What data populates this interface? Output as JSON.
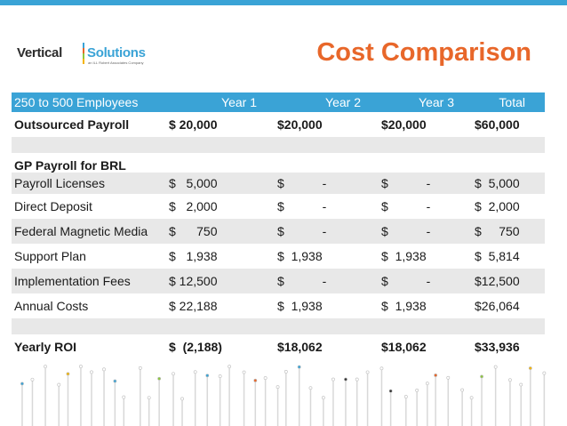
{
  "colors": {
    "accent_blue": "#3aa3d6",
    "title_orange": "#e8672a",
    "row_shade": "#e8e8e8"
  },
  "logo": {
    "word1": "Vertical",
    "word2": "Solutions",
    "tagline": "an ILL Robert Associates Company"
  },
  "title": "Cost Comparison",
  "table": {
    "headers": [
      "250 to 500 Employees",
      "Year 1",
      "Year 2",
      "Year 3",
      "Total"
    ],
    "rows": [
      {
        "label": "Outsourced Payroll",
        "y1": "$ 20,000",
        "y2": "$20,000",
        "y3": "$20,000",
        "total": "$60,000"
      },
      {
        "label": "GP Payroll for BRL"
      },
      {
        "label": "Payroll Licenses",
        "y1": "$   5,000",
        "y2": "$           -",
        "y3": "$           -",
        "total": "$  5,000"
      },
      {
        "label": "Direct Deposit",
        "y1": "$   2,000",
        "y2": "$           -",
        "y3": "$           -",
        "total": "$  2,000"
      },
      {
        "label": "Federal Magnetic Media",
        "y1": "$      750",
        "y2": "$           -",
        "y3": "$           -",
        "total": "$     750"
      },
      {
        "label": "Support Plan",
        "y1": "$   1,938",
        "y2": "$  1,938",
        "y3": "$  1,938",
        "total": "$  5,814"
      },
      {
        "label": "Implementation Fees",
        "y1": "$ 12,500",
        "y2": "$           -",
        "y3": "$           -",
        "total": "$12,500"
      },
      {
        "label": "Annual Costs",
        "y1": "$ 22,188",
        "y2": "$  1,938",
        "y3": "$  1,938",
        "total": "$26,064"
      },
      {
        "label": "Yearly ROI",
        "y1": "$  (2,188)",
        "y2": "$18,062",
        "y3": "$18,062",
        "total": "$33,936"
      }
    ]
  }
}
